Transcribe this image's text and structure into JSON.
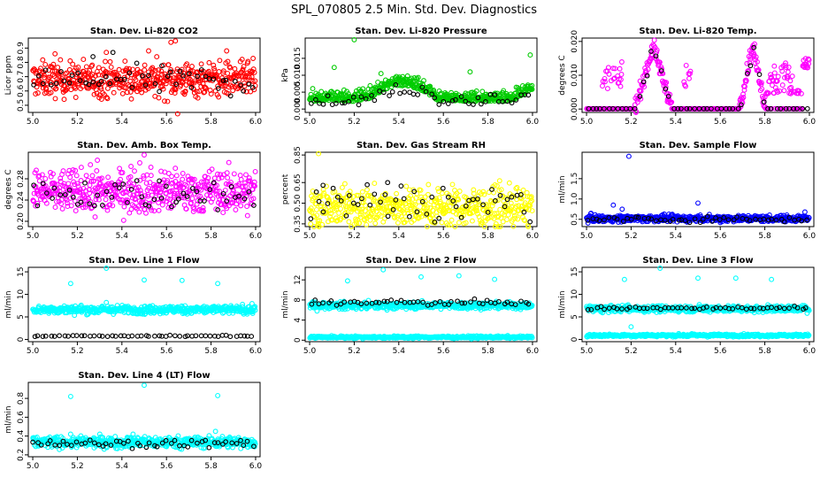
{
  "figure_title": "SPL_070805  2.5 Min. Std. Dev. Diagnostics",
  "colors": {
    "black": "#000000",
    "red": "#ff0000",
    "green": "#00cc00",
    "magenta": "#ff00ff",
    "yellow": "#ffff00",
    "blue": "#0000ff",
    "cyan": "#00ffff"
  },
  "chart_data": [
    {
      "id": "co2",
      "type": "scatter",
      "title": "Stan. Dev. Li-820 CO2",
      "ylabel": "Licor ppm",
      "xlim": [
        4.98,
        6.02
      ],
      "ylim": [
        0.45,
        0.97
      ],
      "xticks": [
        "5.0",
        "5.2",
        "5.4",
        "5.6",
        "5.8",
        "6.0"
      ],
      "yticks": [
        "0.5",
        "0.6",
        "0.7",
        "0.8",
        "0.9"
      ],
      "series": [
        {
          "name": "all",
          "color": "red",
          "n": 520,
          "baseline": 0.68,
          "spread": 0.06,
          "outliers": [
            [
              5.33,
              0.87
            ],
            [
              5.52,
              0.88
            ],
            [
              5.62,
              0.94
            ],
            [
              5.64,
              0.95
            ],
            [
              5.65,
              0.44
            ],
            [
              5.87,
              0.88
            ],
            [
              5.1,
              0.86
            ]
          ]
        },
        {
          "name": "subset",
          "color": "black",
          "n": 52,
          "baseline": 0.67,
          "spread": 0.05,
          "outliers": [
            [
              5.27,
              0.84
            ],
            [
              5.36,
              0.87
            ]
          ]
        }
      ]
    },
    {
      "id": "pressure",
      "type": "scatter",
      "title": "Stan. Dev. Li-820 Pressure",
      "ylabel": "kPa",
      "xlim": [
        4.98,
        6.02
      ],
      "ylim": [
        -0.001,
        0.021
      ],
      "xticks": [
        "5.0",
        "5.2",
        "5.4",
        "5.6",
        "5.8",
        "6.0"
      ],
      "yticks": [
        "0.000",
        "0.005",
        "0.010",
        "0.015"
      ],
      "series": [
        {
          "name": "all",
          "color": "green",
          "n": 520,
          "pattern": "pressure",
          "outliers": [
            [
              5.2,
              0.0205
            ],
            [
              5.32,
              0.0105
            ],
            [
              5.11,
              0.0123
            ],
            [
              5.99,
              0.016
            ],
            [
              5.72,
              0.011
            ]
          ]
        },
        {
          "name": "subset",
          "color": "black",
          "n": 52,
          "pattern": "pressure",
          "outliers": []
        }
      ]
    },
    {
      "id": "temp",
      "type": "scatter",
      "title": "Stan. Dev. Li-820 Temp.",
      "ylabel": "degrees C",
      "xlim": [
        4.98,
        6.02
      ],
      "ylim": [
        -0.001,
        0.021
      ],
      "xticks": [
        "5.0",
        "5.2",
        "5.4",
        "5.6",
        "5.8",
        "6.0"
      ],
      "yticks": [
        "0.000",
        "0.010",
        "0.020"
      ],
      "series": [
        {
          "name": "all",
          "color": "magenta",
          "n": 520,
          "pattern": "temp",
          "outliers": []
        },
        {
          "name": "subset",
          "color": "black",
          "n": 52,
          "pattern": "temp",
          "outliers": []
        }
      ]
    },
    {
      "id": "ambbox",
      "type": "scatter",
      "title": "Stan. Dev. Amb. Box Temp.",
      "ylabel": "degrees C",
      "xlim": [
        4.98,
        6.02
      ],
      "ylim": [
        0.19,
        0.33
      ],
      "xticks": [
        "5.0",
        "5.2",
        "5.4",
        "5.6",
        "5.8",
        "6.0"
      ],
      "yticks": [
        "0.20",
        "0.24",
        "0.28"
      ],
      "series": [
        {
          "name": "all",
          "color": "magenta",
          "n": 520,
          "baseline": 0.256,
          "spread": 0.02,
          "outliers": [
            [
              5.5,
              0.325
            ],
            [
              5.29,
              0.315
            ],
            [
              5.48,
              0.31
            ]
          ]
        },
        {
          "name": "subset",
          "color": "black",
          "n": 52,
          "baseline": 0.252,
          "spread": 0.015,
          "outliers": []
        }
      ]
    },
    {
      "id": "rh",
      "type": "scatter",
      "title": "Stan. Dev. Gas Stream RH",
      "ylabel": "percent",
      "xlim": [
        4.98,
        6.02
      ],
      "ylim": [
        0.33,
        0.87
      ],
      "xticks": [
        "5.0",
        "5.2",
        "5.4",
        "5.6",
        "5.8",
        "6.0"
      ],
      "yticks": [
        "0.35",
        "0.50",
        "0.65",
        "0.85"
      ],
      "series": [
        {
          "name": "all",
          "color": "yellow",
          "n": 520,
          "baseline": 0.47,
          "spread": 0.07,
          "outliers": [
            [
              5.04,
              0.86
            ],
            [
              5.98,
              0.34
            ]
          ]
        },
        {
          "name": "subset",
          "color": "black",
          "n": 52,
          "baseline": 0.5,
          "spread": 0.07,
          "outliers": [
            [
              5.35,
              0.65
            ],
            [
              5.06,
              0.63
            ]
          ]
        }
      ]
    },
    {
      "id": "sample",
      "type": "scatter",
      "title": "Stan. Dev. Sample Flow",
      "ylabel": "ml/min",
      "xlim": [
        4.98,
        6.02
      ],
      "ylim": [
        0.32,
        2.15
      ],
      "xticks": [
        "5.0",
        "5.2",
        "5.4",
        "5.6",
        "5.8",
        "6.0"
      ],
      "yticks": [
        "0.5",
        "1.0",
        "1.5"
      ],
      "series": [
        {
          "name": "all",
          "color": "blue",
          "n": 520,
          "baseline": 0.52,
          "spread": 0.04,
          "outliers": [
            [
              5.19,
              2.05
            ],
            [
              5.12,
              0.85
            ],
            [
              5.16,
              0.75
            ],
            [
              5.5,
              0.9
            ],
            [
              5.02,
              0.65
            ],
            [
              5.98,
              0.68
            ],
            [
              5.6,
              0.42
            ]
          ]
        },
        {
          "name": "subset",
          "color": "black",
          "n": 52,
          "baseline": 0.5,
          "spread": 0.03,
          "outliers": []
        }
      ]
    },
    {
      "id": "line1",
      "type": "scatter",
      "title": "Stan. Dev. Line 1 Flow",
      "ylabel": "ml/min",
      "xlim": [
        4.98,
        6.02
      ],
      "ylim": [
        -0.5,
        16
      ],
      "xticks": [
        "5.0",
        "5.2",
        "5.4",
        "5.6",
        "5.8",
        "6.0"
      ],
      "yticks": [
        "0",
        "5",
        "10",
        "15"
      ],
      "series": [
        {
          "name": "all",
          "color": "cyan",
          "n": 520,
          "baseline": 6.6,
          "spread": 0.45,
          "outliers": [
            [
              5.17,
              12.4
            ],
            [
              5.33,
              15.8
            ],
            [
              5.5,
              13.2
            ],
            [
              5.67,
              13.1
            ],
            [
              5.83,
              12.4
            ],
            [
              5.33,
              8.2
            ]
          ]
        },
        {
          "name": "subset",
          "color": "black",
          "n": 52,
          "baseline": 0.75,
          "spread": 0.08,
          "outliers": []
        }
      ]
    },
    {
      "id": "line2",
      "type": "scatter",
      "title": "Stan. Dev. Line 2 Flow",
      "ylabel": "ml/min",
      "xlim": [
        4.98,
        6.02
      ],
      "ylim": [
        -0.3,
        14.5
      ],
      "xticks": [
        "5.0",
        "5.2",
        "5.4",
        "5.6",
        "5.8",
        "6.0"
      ],
      "yticks": [
        "0",
        "4",
        "8",
        "12"
      ],
      "series": [
        {
          "name": "all",
          "color": "cyan",
          "n": 520,
          "baseline": 6.9,
          "spread": 0.35,
          "outliers": [
            [
              5.17,
              11.8
            ],
            [
              5.33,
              14.0
            ],
            [
              5.5,
              12.6
            ],
            [
              5.67,
              12.8
            ],
            [
              5.83,
              12.1
            ]
          ]
        },
        {
          "name": "all_low",
          "color": "cyan",
          "n": 400,
          "baseline": 0.6,
          "spread": 0.12,
          "outliers": []
        },
        {
          "name": "subset",
          "color": "black",
          "n": 52,
          "baseline": 7.5,
          "spread": 0.25,
          "outliers": []
        }
      ]
    },
    {
      "id": "line3",
      "type": "scatter",
      "title": "Stan. Dev. Line 3 Flow",
      "ylabel": "ml/min",
      "xlim": [
        4.98,
        6.02
      ],
      "ylim": [
        -0.5,
        16
      ],
      "xticks": [
        "5.0",
        "5.2",
        "5.4",
        "5.6",
        "5.8",
        "6.0"
      ],
      "yticks": [
        "0",
        "5",
        "10",
        "15"
      ],
      "series": [
        {
          "name": "all",
          "color": "cyan",
          "n": 520,
          "baseline": 6.8,
          "spread": 0.35,
          "outliers": [
            [
              5.17,
              13.3
            ],
            [
              5.33,
              15.8
            ],
            [
              5.5,
              13.6
            ],
            [
              5.67,
              13.6
            ],
            [
              5.83,
              13.3
            ],
            [
              5.2,
              2.8
            ],
            [
              5.99,
              5.8
            ]
          ]
        },
        {
          "name": "all_low",
          "color": "cyan",
          "n": 400,
          "baseline": 0.9,
          "spread": 0.15,
          "outliers": []
        },
        {
          "name": "subset",
          "color": "black",
          "n": 52,
          "baseline": 6.9,
          "spread": 0.2,
          "outliers": []
        }
      ]
    },
    {
      "id": "line4",
      "type": "scatter",
      "title": "Stan. Dev. Line 4 (LT) Flow",
      "ylabel": "ml/min",
      "xlim": [
        4.98,
        6.02
      ],
      "ylim": [
        0.18,
        0.97
      ],
      "xticks": [
        "5.0",
        "5.2",
        "5.4",
        "5.6",
        "5.8",
        "6.0"
      ],
      "yticks": [
        "0.2",
        "0.4",
        "0.6",
        "0.8"
      ],
      "series": [
        {
          "name": "all",
          "color": "cyan",
          "n": 520,
          "baseline": 0.335,
          "spread": 0.03,
          "outliers": [
            [
              5.17,
              0.82
            ],
            [
              5.5,
              0.94
            ],
            [
              5.83,
              0.83
            ],
            [
              5.82,
              0.45
            ],
            [
              5.45,
              0.42
            ]
          ]
        },
        {
          "name": "subset",
          "color": "black",
          "n": 52,
          "baseline": 0.32,
          "spread": 0.02,
          "outliers": []
        }
      ]
    }
  ]
}
